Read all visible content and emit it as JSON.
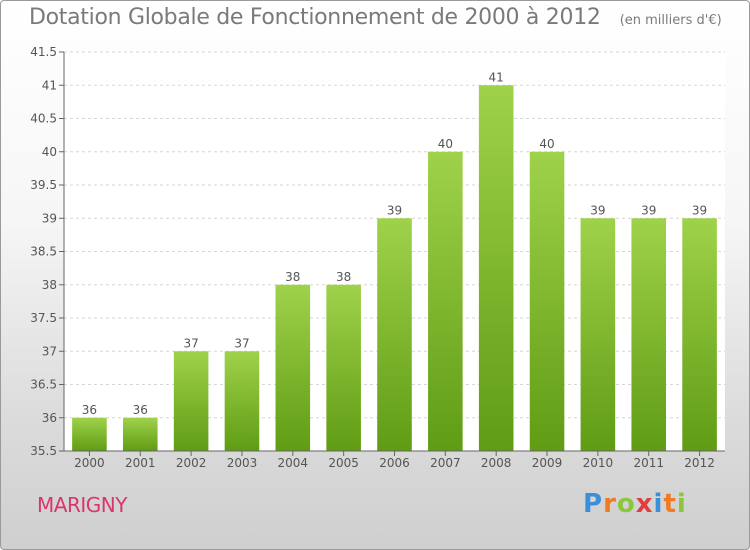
{
  "header": {
    "title": "Dotation Globale de Fonctionnement de 2000 à 2012",
    "unit": "(en milliers d'€)"
  },
  "footer": {
    "place": "MARIGNY",
    "logo_letters": [
      "P",
      "r",
      "o",
      "x",
      "i",
      "t",
      "i"
    ],
    "logo_colors": [
      "#3b8fd9",
      "#f07b22",
      "#8cc63f",
      "#e23d3d",
      "#3b8fd9",
      "#f07b22",
      "#8cc63f"
    ]
  },
  "chart_data": {
    "type": "bar",
    "categories": [
      "2000",
      "2001",
      "2002",
      "2003",
      "2004",
      "2005",
      "2006",
      "2007",
      "2008",
      "2009",
      "2010",
      "2011",
      "2012"
    ],
    "values": [
      36,
      36,
      37,
      37,
      38,
      38,
      39,
      40,
      41,
      40,
      39,
      39,
      39
    ],
    "data_labels": [
      "36",
      "36",
      "37",
      "37",
      "38",
      "38",
      "39",
      "40",
      "41",
      "40",
      "39",
      "39",
      "39"
    ],
    "ylim": [
      35.5,
      41.5
    ],
    "yticks": [
      35.5,
      36,
      36.5,
      37,
      37.5,
      38,
      38.5,
      39,
      39.5,
      40,
      40.5,
      41,
      41.5
    ],
    "ytick_labels": [
      "35.5",
      "36",
      "36.5",
      "37",
      "37.5",
      "38",
      "38.5",
      "39",
      "39.5",
      "40",
      "40.5",
      "41",
      "41.5"
    ],
    "grid": true,
    "colors": {
      "bar_top": "#9fd24a",
      "bar_bottom": "#5f9c14",
      "grid": "#d6d6d6",
      "axis": "#666666"
    }
  }
}
